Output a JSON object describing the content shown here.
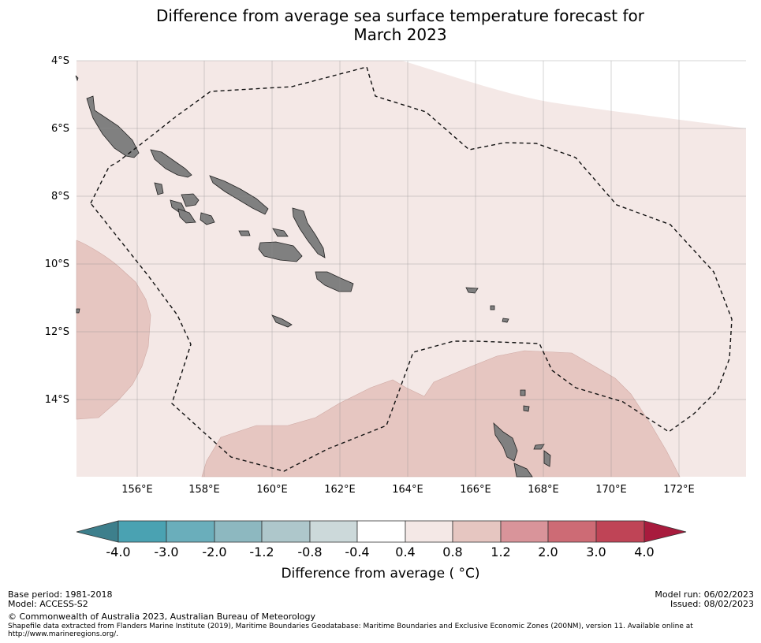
{
  "title": {
    "line1": "Difference from average sea surface temperature forecast for",
    "line2": "March 2023"
  },
  "map": {
    "lat_labels": [
      "4°S",
      "6°S",
      "8°S",
      "10°S",
      "12°S",
      "14°S"
    ],
    "lon_labels": [
      "156°E",
      "158°E",
      "160°E",
      "162°E",
      "164°E",
      "166°E",
      "168°E",
      "170°E",
      "172°E"
    ],
    "anomaly_bands": [
      {
        "range": "0.4 to 0.8",
        "color": "#f4e8e6"
      },
      {
        "range": "0.8 to 1.2",
        "color": "#e6c6c1"
      }
    ],
    "land_color": "#808080",
    "eez_boundary": "dashed"
  },
  "colorbar": {
    "ticks": [
      "-4.0",
      "-3.0",
      "-2.0",
      "-1.2",
      "-0.8",
      "-0.4",
      "0.4",
      "0.8",
      "1.2",
      "2.0",
      "3.0",
      "4.0"
    ],
    "colors": [
      "#3d7f8c",
      "#4aa2b2",
      "#6aaebb",
      "#8db8c0",
      "#aec7cb",
      "#ccd9da",
      "#ffffff",
      "#f4e8e6",
      "#e6c6c1",
      "#d9949a",
      "#cd6b75",
      "#bf4456",
      "#a81b3d"
    ],
    "label": "Difference from average ( °C)"
  },
  "footer": {
    "base_period": "Base period: 1981-2018",
    "model": "Model: ACCESS-S2",
    "model_run": "Model run: 06/02/2023",
    "issued": "Issued: 08/02/2023",
    "copyright": "© Commonwealth of Australia 2023, Australian Bureau of Meteorology",
    "shapefile_line1": "Shapefile data extracted from Flanders Marine Institute (2019), Maritime Boundaries Geodatabase: Maritime Boundaries and Exclusive Economic Zones (200NM), version 11. Available online at",
    "shapefile_line2": "http://www.marineregions.org/."
  }
}
